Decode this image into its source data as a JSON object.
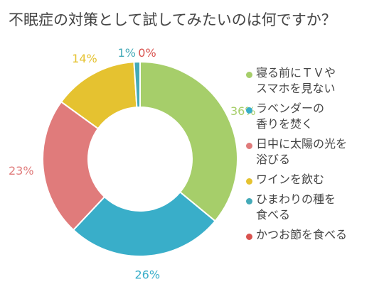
{
  "title": "不眠症の対策として試してみたいのは何ですか？",
  "chart_data": {
    "type": "pie",
    "subtype": "donut",
    "categories": [
      "寝る前にＴＶや\nスマホを見ない",
      "ラベンダーの\n香りを焚く",
      "日中に太陽の光を\n浴びる",
      "ワインを飲む",
      "ひまわりの種を\n食べる",
      "かつお節を食べる"
    ],
    "values": [
      36,
      26,
      23,
      14,
      1,
      0
    ],
    "labels": [
      "36%",
      "26%",
      "23%",
      "14%",
      "1%",
      "0%"
    ],
    "colors": [
      "#a6ce6a",
      "#39aec9",
      "#e07b7b",
      "#e5c230",
      "#44aab8",
      "#d9534f"
    ],
    "legend_position": "right"
  }
}
